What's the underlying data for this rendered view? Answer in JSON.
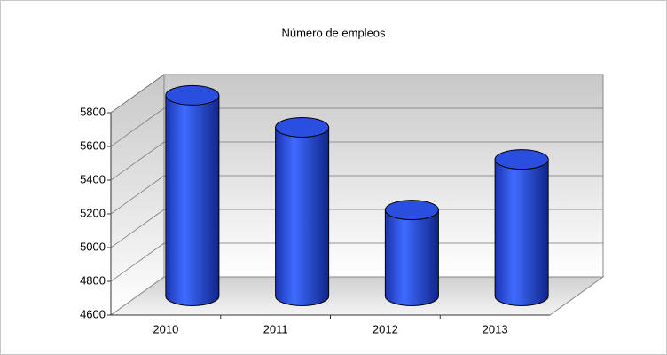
{
  "chart_data": {
    "type": "bar3d",
    "title": "Número de empleos",
    "categories": [
      "2010",
      "2011",
      "2012",
      "2013"
    ],
    "values": [
      5790,
      5600,
      5110,
      5410
    ],
    "color": "#2a4fe0",
    "ylim": [
      4600,
      5800
    ],
    "yticks": [
      4600,
      4800,
      5000,
      5200,
      5400,
      5600,
      5800
    ],
    "grid": true
  }
}
